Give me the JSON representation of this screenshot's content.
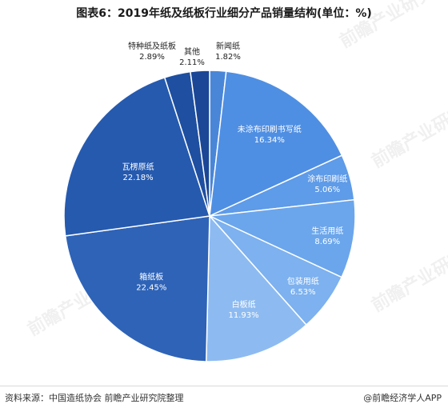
{
  "title": "图表6：2019年纸及纸板行业细分产品销量结构(单位：%)",
  "footer": {
    "source": "资料来源：中国造纸协会 前瞻产业研究院整理",
    "brand": "@前瞻经济学人APP"
  },
  "watermark": "前瞻产业研究院",
  "chart_data": {
    "type": "pie",
    "title": "图表6：2019年纸及纸板行业细分产品销量结构(单位：%)",
    "unit": "%",
    "slices": [
      {
        "name": "新闻纸",
        "value": 1.82,
        "value_label": "1.82%",
        "color": "#4A86D8",
        "label_outside": true
      },
      {
        "name": "未涂布印刷书写纸",
        "value": 16.34,
        "value_label": "16.34%",
        "color": "#4F8FE3",
        "label_outside": false
      },
      {
        "name": "涂布印刷纸",
        "value": 5.06,
        "value_label": "5.06%",
        "color": "#5E9BE8",
        "label_outside": false
      },
      {
        "name": "生活用纸",
        "value": 8.69,
        "value_label": "8.69%",
        "color": "#6BA6EC",
        "label_outside": false
      },
      {
        "name": "包装用纸",
        "value": 6.53,
        "value_label": "6.53%",
        "color": "#7DB1EF",
        "label_outside": false
      },
      {
        "name": "白板纸",
        "value": 11.93,
        "value_label": "11.93%",
        "color": "#8DBBF1",
        "label_outside": false
      },
      {
        "name": "箱纸板",
        "value": 22.45,
        "value_label": "22.45%",
        "color": "#2E63B7",
        "label_outside": false
      },
      {
        "name": "瓦楞原纸",
        "value": 22.18,
        "value_label": "22.18%",
        "color": "#255AAF",
        "label_outside": false
      },
      {
        "name": "特种纸及纸板",
        "value": 2.89,
        "value_label": "2.89%",
        "color": "#1E4FA0",
        "label_outside": true
      },
      {
        "name": "其他",
        "value": 2.11,
        "value_label": "2.11%",
        "color": "#1B4796",
        "label_outside": true
      }
    ]
  }
}
